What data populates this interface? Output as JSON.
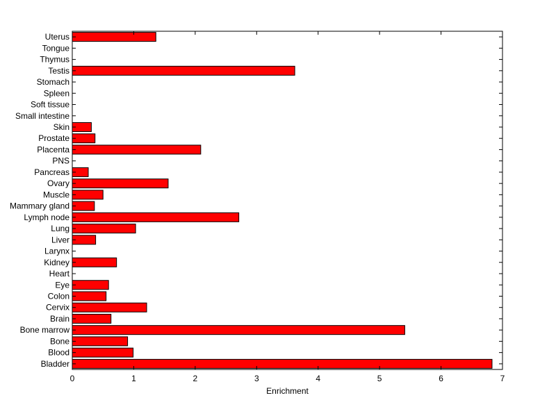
{
  "chart_data": {
    "type": "bar",
    "orientation": "horizontal",
    "xlabel": "Enrichment",
    "xlim": [
      0,
      7
    ],
    "xticks": [
      "0",
      "1",
      "2",
      "3",
      "4",
      "5",
      "6",
      "7"
    ],
    "bar_color": "#ff0000",
    "bar_edge_color": "#000000",
    "grid": false,
    "categories": [
      "Bladder",
      "Blood",
      "Bone",
      "Bone marrow",
      "Brain",
      "Cervix",
      "Colon",
      "Eye",
      "Heart",
      "Kidney",
      "Larynx",
      "Liver",
      "Lung",
      "Lymph node",
      "Mammary gland",
      "Muscle",
      "Ovary",
      "Pancreas",
      "PNS",
      "Placenta",
      "Prostate",
      "Skin",
      "Small intestine",
      "Soft tissue",
      "Spleen",
      "Stomach",
      "Testis",
      "Thymus",
      "Tongue",
      "Uterus"
    ],
    "values": [
      6.83,
      0.99,
      0.9,
      5.41,
      0.63,
      1.21,
      0.55,
      0.59,
      0,
      0.72,
      0,
      0.38,
      1.03,
      2.71,
      0.36,
      0.5,
      1.56,
      0.26,
      0,
      2.09,
      0.37,
      0.31,
      0,
      0,
      0,
      0,
      3.62,
      0,
      0,
      1.36
    ]
  }
}
